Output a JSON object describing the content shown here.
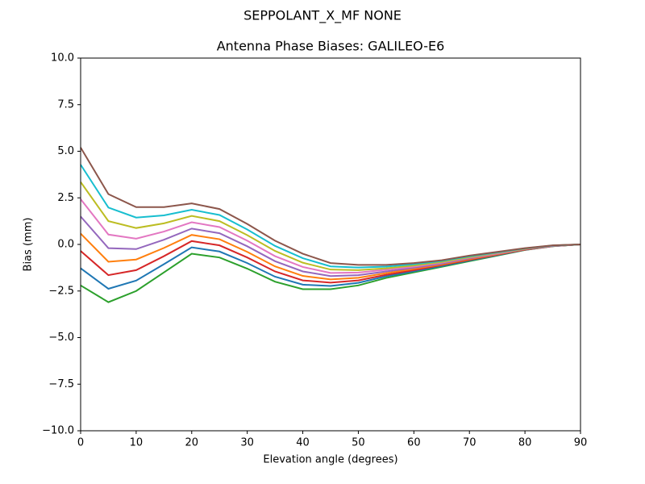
{
  "chart_data": {
    "type": "line",
    "suptitle": "SEPPOLANT_X_MF  NONE",
    "title": "Antenna Phase Biases: GALILEO-E6",
    "xlabel": "Elevation angle (degrees)",
    "ylabel": "Bias (mm)",
    "x": [
      0,
      5,
      10,
      15,
      20,
      25,
      30,
      35,
      40,
      45,
      50,
      55,
      60,
      65,
      70,
      75,
      80,
      85,
      90
    ],
    "xlim": [
      0,
      90
    ],
    "xticks": [
      0,
      10,
      20,
      30,
      40,
      50,
      60,
      70,
      80,
      90
    ],
    "ylim": [
      -10,
      10
    ],
    "yticks": [
      {
        "value": -10,
        "label": "−10.0"
      },
      {
        "value": -7.5,
        "label": "−7.5"
      },
      {
        "value": -5,
        "label": "−5.0"
      },
      {
        "value": -2.5,
        "label": "−2.5"
      },
      {
        "value": 0,
        "label": "0.0"
      },
      {
        "value": 2.5,
        "label": "2.5"
      },
      {
        "value": 5,
        "label": "5.0"
      },
      {
        "value": 7.5,
        "label": "7.5"
      },
      {
        "value": 10,
        "label": "10.0"
      }
    ],
    "grid": false,
    "series": [
      {
        "color": "#2ca02c",
        "values": [
          -2.2,
          -3.1,
          -2.5,
          -1.5,
          -0.5,
          -0.7,
          -1.3,
          -2.0,
          -2.4,
          -2.4,
          -2.2,
          -1.8,
          -1.5,
          -1.2,
          -0.9,
          -0.6,
          -0.3,
          -0.1,
          0
        ]
      },
      {
        "color": "#1f77b4",
        "values": [
          -1.28,
          -2.38,
          -1.94,
          -1.06,
          -0.16,
          -0.38,
          -1.0,
          -1.73,
          -2.16,
          -2.23,
          -2.06,
          -1.71,
          -1.44,
          -1.16,
          -0.86,
          -0.58,
          -0.29,
          -0.09,
          0
        ]
      },
      {
        "color": "#d62728",
        "values": [
          -0.35,
          -1.65,
          -1.38,
          -0.63,
          0.18,
          -0.05,
          -0.7,
          -1.45,
          -1.93,
          -2.05,
          -1.93,
          -1.63,
          -1.38,
          -1.11,
          -0.83,
          -0.55,
          -0.28,
          -0.09,
          0
        ]
      },
      {
        "color": "#ff7f0e",
        "values": [
          0.58,
          -0.93,
          -0.81,
          -0.19,
          0.51,
          0.28,
          -0.4,
          -1.18,
          -1.69,
          -1.88,
          -1.79,
          -1.54,
          -1.31,
          -1.07,
          -0.79,
          -0.53,
          -0.26,
          -0.08,
          0
        ]
      },
      {
        "color": "#9467bd",
        "values": [
          1.5,
          -0.2,
          -0.25,
          0.25,
          0.85,
          0.6,
          -0.1,
          -0.9,
          -1.45,
          -1.7,
          -1.65,
          -1.45,
          -1.25,
          -1.03,
          -0.75,
          -0.5,
          -0.25,
          -0.08,
          0
        ]
      },
      {
        "color": "#e377c2",
        "values": [
          2.43,
          0.53,
          0.31,
          0.69,
          1.19,
          0.93,
          0.2,
          -0.63,
          -1.21,
          -1.53,
          -1.51,
          -1.36,
          -1.19,
          -0.98,
          -0.71,
          -0.48,
          -0.24,
          -0.07,
          0
        ]
      },
      {
        "color": "#bcbd22",
        "values": [
          3.35,
          1.25,
          0.88,
          1.13,
          1.53,
          1.25,
          0.5,
          -0.35,
          -0.98,
          -1.35,
          -1.38,
          -1.28,
          -1.13,
          -0.94,
          -0.68,
          -0.45,
          -0.23,
          -0.06,
          0
        ]
      },
      {
        "color": "#17becf",
        "values": [
          4.28,
          1.98,
          1.44,
          1.56,
          1.86,
          1.58,
          0.8,
          -0.08,
          -0.74,
          -1.18,
          -1.24,
          -1.19,
          -1.06,
          -0.89,
          -0.64,
          -0.43,
          -0.21,
          -0.06,
          0
        ]
      },
      {
        "color": "#8c564b",
        "values": [
          5.2,
          2.7,
          2.0,
          2.0,
          2.2,
          1.9,
          1.1,
          0.2,
          -0.5,
          -1.0,
          -1.1,
          -1.1,
          -1.0,
          -0.85,
          -0.6,
          -0.4,
          -0.2,
          -0.05,
          0
        ]
      }
    ]
  }
}
